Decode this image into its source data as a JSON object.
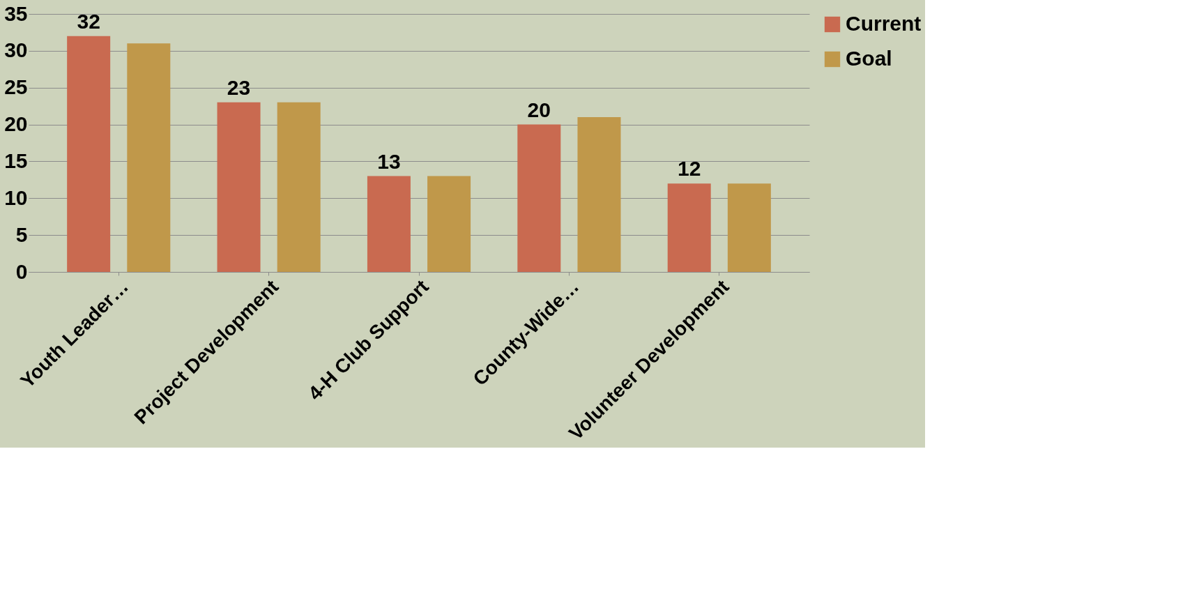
{
  "chart_data": {
    "type": "bar",
    "categories": [
      "Youth Leader…",
      "Project Development",
      "4-H Club Support",
      "County-Wide…",
      "Volunteer Development"
    ],
    "series": [
      {
        "name": "Current",
        "color": "#c96a50",
        "values": [
          32,
          23,
          13,
          20,
          12
        ],
        "value_labels": [
          "32",
          "23",
          "13",
          "20",
          "12"
        ]
      },
      {
        "name": "Goal",
        "color": "#c0984a",
        "values": [
          31,
          23,
          13,
          21,
          12
        ]
      }
    ],
    "ylim": [
      0,
      35
    ],
    "yticks": [
      0,
      5,
      10,
      15,
      20,
      25,
      30,
      35
    ],
    "grid": "y",
    "legend": "right"
  }
}
